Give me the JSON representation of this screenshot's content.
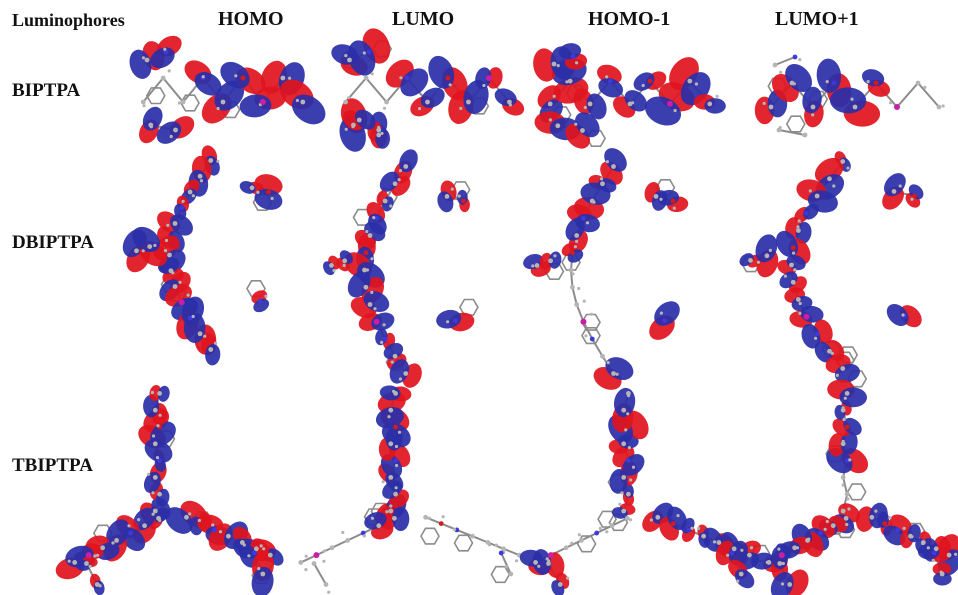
{
  "header": {
    "col0": "Luminophores",
    "cols": [
      "HOMO",
      "LUMO",
      "HOMO-1",
      "LUMO+1"
    ]
  },
  "rows": [
    {
      "label": "BIPTPA"
    },
    {
      "label": "DBIPTPA"
    },
    {
      "label": "TBIPTPA"
    }
  ],
  "colors": {
    "positive_lobe": "#e0141e",
    "negative_lobe": "#2b2fa8",
    "bond": "#8c8c8c",
    "atom": "#b5b5b5",
    "nitrogen_atom": "#3a3adf",
    "oxygen_atom": "#d61a1a",
    "central_atom": "#c81ea8"
  }
}
